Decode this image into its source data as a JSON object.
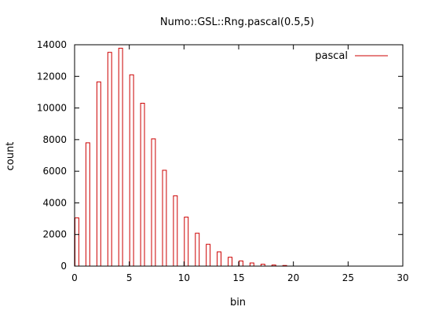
{
  "chart_data": {
    "type": "bar",
    "title": "Numo::GSL::Rng.pascal(0.5,5)",
    "xlabel": "bin",
    "ylabel": "count",
    "xlim": [
      0,
      30
    ],
    "ylim": [
      0,
      14000
    ],
    "xticks": [
      0,
      5,
      10,
      15,
      20,
      25,
      30
    ],
    "yticks": [
      0,
      2000,
      4000,
      6000,
      8000,
      10000,
      12000,
      14000
    ],
    "grid": false,
    "legend_position": "top-right",
    "series": [
      {
        "name": "pascal",
        "color": "#cc0000",
        "x": [
          0,
          1,
          2,
          3,
          4,
          5,
          6,
          7,
          8,
          9,
          10,
          11,
          12,
          13,
          14,
          15,
          16,
          17,
          18,
          19
        ],
        "values": [
          3050,
          7800,
          11650,
          13520,
          13780,
          12100,
          10300,
          8050,
          6060,
          4450,
          3100,
          2080,
          1380,
          900,
          560,
          330,
          200,
          120,
          70,
          40
        ]
      }
    ]
  }
}
